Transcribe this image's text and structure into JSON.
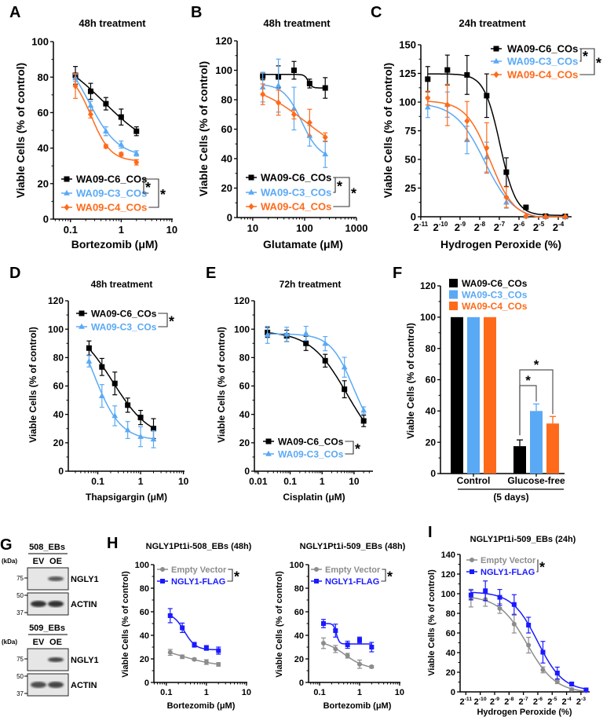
{
  "panel_letters": {
    "A": "A",
    "B": "B",
    "C": "C",
    "D": "D",
    "E": "E",
    "F": "F",
    "G": "G",
    "H": "H",
    "I": "I"
  },
  "colors": {
    "WA09-C6_COs": "#000000",
    "WA09-C3_COs": "#5aa9f5",
    "WA09-C4_COs": "#ff6a1a",
    "Empty Vector": "#8c8c8c",
    "NGLY1-FLAG": "#1a1aff"
  },
  "chart_data": [
    {
      "panel": "A",
      "type": "line",
      "title": "48h treatment",
      "xlabel": "Bortezomib (μM)",
      "ylabel": "Viable Cells (% of control)",
      "xscale": "log10",
      "xlim": [
        0.046,
        10.4
      ],
      "ylim": [
        0,
        100
      ],
      "x_ticks": [
        0.1,
        1,
        10
      ],
      "x_tick_labels": [
        "0.1",
        "1",
        "10"
      ],
      "y_ticks": [
        0,
        20,
        40,
        60,
        80,
        100
      ],
      "series": [
        {
          "name": "WA09-C6_COs",
          "color": "#000000",
          "marker": "square",
          "x": [
            0.125,
            0.25,
            0.5,
            1,
            2
          ],
          "y": [
            81,
            72,
            65,
            57.5,
            49.5
          ],
          "err": [
            5,
            4.5,
            3.5,
            4.5,
            2.5
          ]
        },
        {
          "name": "WA09-C3_COs",
          "color": "#5aa9f5",
          "marker": "triangle",
          "x": [
            0.125,
            0.25,
            0.5,
            1,
            2
          ],
          "y": [
            79.5,
            64,
            49.5,
            42,
            37
          ],
          "err": [
            2,
            2.5,
            2.5,
            2,
            1.5
          ]
        },
        {
          "name": "WA09-C4_COs",
          "color": "#ff6a1a",
          "marker": "diamond",
          "x": [
            0.125,
            0.25,
            0.5,
            1,
            2
          ],
          "y": [
            75,
            59,
            41,
            36.5,
            32
          ],
          "err": [
            7,
            2,
            1,
            1,
            1.5
          ]
        }
      ],
      "significance": [
        {
          "pair": [
            0,
            1
          ],
          "label": "*"
        },
        {
          "pair": [
            0,
            2
          ],
          "label": "*"
        }
      ]
    },
    {
      "panel": "B",
      "type": "line",
      "title": "48h treatment",
      "xlabel": "Glutamate (μM)",
      "ylabel": "Viable Cells (% of control)",
      "xscale": "log10",
      "xlim": [
        5,
        1000
      ],
      "ylim": [
        0,
        120
      ],
      "x_ticks": [
        10,
        100,
        1000
      ],
      "x_tick_labels": [
        "10",
        "100",
        "1000"
      ],
      "y_ticks": [
        0,
        20,
        40,
        60,
        80,
        100,
        120
      ],
      "series": [
        {
          "name": "WA09-C6_COs",
          "color": "#000000",
          "marker": "square",
          "x": [
            15.6,
            31.25,
            62.5,
            125,
            250
          ],
          "y": [
            96,
            95.5,
            100,
            91,
            88
          ],
          "err": [
            2.5,
            7.5,
            6,
            3,
            7
          ]
        },
        {
          "name": "WA09-C3_COs",
          "color": "#5aa9f5",
          "marker": "triangle",
          "x": [
            15.6,
            31.25,
            62.5,
            125,
            250
          ],
          "y": [
            88.5,
            89.6,
            74,
            55.5,
            43
          ],
          "err": [
            10,
            18,
            14.5,
            7,
            9
          ]
        },
        {
          "name": "WA09-C4_COs",
          "color": "#ff6a1a",
          "marker": "diamond",
          "x": [
            15.6,
            31.25,
            62.5,
            125,
            250
          ],
          "y": [
            83.7,
            78,
            70,
            64.5,
            54.5
          ],
          "err": [
            7,
            8.5,
            3,
            9,
            3
          ]
        }
      ],
      "significance": [
        {
          "pair": [
            0,
            1
          ],
          "label": "*"
        },
        {
          "pair": [
            0,
            2
          ],
          "label": "*"
        }
      ]
    },
    {
      "panel": "C",
      "type": "line",
      "title": "24h treatment",
      "xlabel": "Hydrogen Peroxide (%)",
      "ylabel": "Viable Cells (% of control)",
      "xscale": "log2",
      "xlim": [
        0.00049,
        0.1
      ],
      "ylim": [
        0,
        150
      ],
      "x_ticks": [
        -11,
        -10,
        -9,
        -8,
        -7,
        -6,
        -5,
        -4
      ],
      "x_tick_labels": [
        "2^-11",
        "2^-10",
        "2^-9",
        "2^-8",
        "2^-7",
        "2^-6",
        "2^-5",
        "2^-4"
      ],
      "y_ticks": [
        0,
        25,
        50,
        75,
        100,
        125,
        150
      ],
      "series": [
        {
          "name": "WA09-C6_COs",
          "color": "#000000",
          "marker": "square",
          "x": [
            0.000625,
            0.00125,
            0.0025,
            0.005,
            0.01,
            0.02,
            0.04,
            0.08
          ],
          "y": [
            120,
            128,
            123.7,
            105.6,
            38.9,
            8.2,
            0.5,
            0.3
          ],
          "err": [
            11,
            13,
            17,
            19,
            12.5,
            1,
            0.5,
            0.5
          ]
        },
        {
          "name": "WA09-C3_COs",
          "color": "#5aa9f5",
          "marker": "triangle",
          "x": [
            0.000625,
            0.00125,
            0.0025,
            0.005,
            0.01,
            0.02,
            0.04,
            0.08
          ],
          "y": [
            95.5,
            97.8,
            67,
            52,
            12.5,
            0.5,
            0,
            0
          ],
          "err": [
            9,
            11,
            12,
            13,
            5,
            0.5,
            0.3,
            0.3
          ]
        },
        {
          "name": "WA09-C4_COs",
          "color": "#ff6a1a",
          "marker": "diamond",
          "x": [
            0.000625,
            0.00125,
            0.0025,
            0.005,
            0.01,
            0.02,
            0.04,
            0.08
          ],
          "y": [
            103.5,
            97.5,
            83.5,
            60,
            17,
            0.5,
            0,
            0
          ],
          "err": [
            6,
            18,
            17,
            22,
            9,
            0.5,
            0.3,
            0.3
          ]
        }
      ],
      "significance": [
        {
          "pair": [
            0,
            1
          ],
          "label": "*"
        },
        {
          "pair": [
            0,
            2
          ],
          "label": "*"
        }
      ]
    },
    {
      "panel": "D",
      "type": "line",
      "title": "48h treatment",
      "xlabel": "Thapsigargin (μM)",
      "ylabel": "Viable Cells (% of control)",
      "xscale": "log10",
      "xlim": [
        0.0205,
        10.6
      ],
      "ylim": [
        0,
        120
      ],
      "x_ticks": [
        0.1,
        1,
        10
      ],
      "x_tick_labels": [
        "0.1",
        "1",
        "10"
      ],
      "y_ticks": [
        0,
        20,
        40,
        60,
        80,
        100,
        120
      ],
      "series": [
        {
          "name": "WA09-C6_COs",
          "color": "#000000",
          "marker": "square",
          "x": [
            0.0625,
            0.125,
            0.25,
            0.5,
            1,
            2
          ],
          "y": [
            86.7,
            73.4,
            61.8,
            46.5,
            37.8,
            30
          ],
          "err": [
            5,
            6,
            8,
            5,
            5,
            7
          ]
        },
        {
          "name": "WA09-C3_COs",
          "color": "#5aa9f5",
          "marker": "triangle",
          "x": [
            0.0625,
            0.125,
            0.25,
            0.5,
            1,
            2
          ],
          "y": [
            77.4,
            53,
            39,
            29,
            24.3,
            22.5
          ],
          "err": [
            4,
            8,
            7,
            6,
            7,
            6
          ]
        }
      ],
      "significance": [
        {
          "pair": [
            0,
            1
          ],
          "label": "*"
        }
      ]
    },
    {
      "panel": "E",
      "type": "line",
      "title": "72h treatment",
      "xlabel": "Cisplatin (μM)",
      "ylabel": "Viable Cells (% of control)",
      "xscale": "log10",
      "xlim": [
        0.0076,
        39
      ],
      "ylim": [
        0,
        120
      ],
      "x_ticks": [
        0.01,
        0.1,
        1,
        10
      ],
      "x_tick_labels": [
        "0.01",
        "0.1",
        "1",
        "10"
      ],
      "y_ticks": [
        0,
        20,
        40,
        60,
        80,
        100,
        120
      ],
      "series": [
        {
          "name": "WA09-C6_COs",
          "color": "#000000",
          "marker": "square",
          "x": [
            0.0195,
            0.078,
            0.3125,
            1.25,
            5,
            20
          ],
          "y": [
            97.7,
            95.3,
            90,
            77.8,
            57.7,
            35.4
          ],
          "err": [
            3.5,
            4,
            5,
            4.5,
            6,
            4
          ]
        },
        {
          "name": "WA09-C3_COs",
          "color": "#5aa9f5",
          "marker": "triangle",
          "x": [
            0.0195,
            0.078,
            0.3125,
            1.25,
            5,
            20
          ],
          "y": [
            96,
            96.4,
            97,
            89.8,
            73.2,
            42.8
          ],
          "err": [
            6,
            5,
            5,
            5,
            7,
            2.5
          ]
        }
      ],
      "significance": [
        {
          "pair": [
            0,
            1
          ],
          "label": "*"
        }
      ]
    },
    {
      "panel": "F",
      "type": "bar",
      "title": "",
      "xlabel": "(5 days)",
      "ylabel": "Viable Cells (% of control)",
      "ylim": [
        0,
        120
      ],
      "y_ticks": [
        0,
        20,
        40,
        60,
        80,
        100,
        120
      ],
      "categories": [
        "Control",
        "Glucose-free"
      ],
      "series": [
        {
          "name": "WA09-C6_COs",
          "color": "#000000",
          "values": [
            100,
            17.5
          ],
          "err": [
            0,
            4
          ]
        },
        {
          "name": "WA09-C3_COs",
          "color": "#5aa9f5",
          "values": [
            100,
            40
          ],
          "err": [
            0,
            4.5
          ]
        },
        {
          "name": "WA09-C4_COs",
          "color": "#ff6a1a",
          "values": [
            100,
            32
          ],
          "err": [
            0,
            4.5
          ]
        }
      ],
      "significance": [
        {
          "category": 1,
          "pair": [
            0,
            1
          ],
          "label": "*"
        },
        {
          "category": 1,
          "pair": [
            0,
            2
          ],
          "label": "*"
        }
      ],
      "legend": "top-left"
    },
    {
      "panel": "H",
      "type": "line",
      "title": "NGLY1Pt1i-508_EBs (48h)",
      "xlabel": "Bortezomib (μM)",
      "ylabel": "Viable Cells (% of control)",
      "xscale": "log10",
      "xlim": [
        0.049,
        10.5
      ],
      "ylim": [
        0,
        100
      ],
      "x_ticks": [
        0.1,
        1,
        10
      ],
      "x_tick_labels": [
        "0.1",
        "1",
        "10"
      ],
      "y_ticks": [
        0,
        20,
        40,
        60,
        80,
        100
      ],
      "series": [
        {
          "name": "Empty Vector",
          "color": "#8c8c8c",
          "marker": "circle",
          "x": [
            0.125,
            0.25,
            0.5,
            1,
            2
          ],
          "y": [
            25.5,
            21.8,
            19.6,
            17.3,
            15.3
          ],
          "err": [
            2.5,
            1.5,
            1,
            2,
            1.5
          ]
        },
        {
          "name": "NGLY1-FLAG",
          "color": "#1a1aff",
          "marker": "square",
          "x": [
            0.125,
            0.25,
            0.5,
            1,
            2
          ],
          "y": [
            56.7,
            46.4,
            32,
            29.3,
            27
          ],
          "err": [
            6,
            4,
            2,
            2,
            3
          ]
        }
      ],
      "significance": [
        {
          "pair": [
            0,
            1
          ],
          "label": "*"
        }
      ]
    },
    {
      "panel": "H",
      "type": "line",
      "title": "NGLY1Pt1i-509_EBs (48h)",
      "xlabel": "Bortezomib (μM)",
      "ylabel": "Viable Cells (% of control)",
      "xscale": "log10",
      "xlim": [
        0.053,
        10.5
      ],
      "ylim": [
        0,
        100
      ],
      "x_ticks": [
        0.1,
        1,
        10
      ],
      "x_tick_labels": [
        "0.1",
        "1",
        "10"
      ],
      "y_ticks": [
        0,
        20,
        40,
        60,
        80,
        100
      ],
      "series": [
        {
          "name": "Empty Vector",
          "color": "#8c8c8c",
          "marker": "circle",
          "x": [
            0.125,
            0.25,
            0.5,
            1,
            2
          ],
          "y": [
            33.3,
            28.4,
            22.7,
            15.5,
            13.3
          ],
          "err": [
            4.5,
            3,
            2,
            3.5,
            1
          ]
        },
        {
          "name": "NGLY1-FLAG",
          "color": "#1a1aff",
          "marker": "square",
          "x": [
            0.125,
            0.25,
            0.5,
            1,
            2
          ],
          "y": [
            50,
            44,
            32,
            36,
            30
          ],
          "err": [
            3.5,
            5.5,
            3,
            2.5,
            4
          ]
        }
      ],
      "significance": [
        {
          "pair": [
            0,
            1
          ],
          "label": "*"
        }
      ]
    },
    {
      "panel": "I",
      "type": "line",
      "title": "NGLY1Pt1i-509_EBs (24h)",
      "xlabel": "Hydrogen Peroxide (%)",
      "ylabel": "Viable Cells (% of control)",
      "xscale": "log2",
      "xlim": [
        0.00037,
        0.19
      ],
      "ylim": [
        0,
        140
      ],
      "x_ticks": [
        -11,
        -10,
        -9,
        -8,
        -7,
        -6,
        -5,
        -4,
        -3
      ],
      "x_tick_labels": [
        "2^-11",
        "2^-10",
        "2^-9",
        "2^-8",
        "2^-7",
        "2^-6",
        "2^-5",
        "2^-4",
        "2^-3"
      ],
      "y_ticks": [
        0,
        20,
        40,
        60,
        80,
        100,
        120,
        140
      ],
      "series": [
        {
          "name": "Empty Vector",
          "color": "#8c8c8c",
          "marker": "circle",
          "x": [
            0.000625,
            0.00125,
            0.0025,
            0.005,
            0.01,
            0.02,
            0.04,
            0.08,
            0.16
          ],
          "y": [
            95.5,
            94.2,
            85,
            69,
            47.6,
            22.4,
            10.4,
            2.4,
            1
          ],
          "err": [
            9,
            7,
            5,
            9,
            8,
            3,
            2,
            1.5,
            1
          ]
        },
        {
          "name": "NGLY1-FLAG",
          "color": "#1a1aff",
          "marker": "square",
          "x": [
            0.000625,
            0.00125,
            0.0025,
            0.005,
            0.01,
            0.02,
            0.04,
            0.08,
            0.16
          ],
          "y": [
            98.7,
            103,
            96.3,
            89,
            68,
            40.4,
            19.2,
            8,
            2
          ],
          "err": [
            5,
            10,
            8,
            10,
            8,
            11,
            6,
            2,
            1
          ]
        }
      ],
      "significance": [
        {
          "pair": [
            0,
            1
          ],
          "label": "*"
        }
      ]
    }
  ],
  "blots": [
    {
      "title": "508_EBs",
      "unit": "(kDa)",
      "lanes": [
        "EV",
        "OE"
      ],
      "rows": [
        {
          "label": "NGLY1",
          "markers": [
            "75"
          ],
          "bands": [
            0,
            0.8
          ]
        },
        {
          "label": "ACTIN",
          "markers": [
            "50",
            "37"
          ],
          "bands": [
            1,
            1
          ]
        }
      ]
    },
    {
      "title": "509_EBs",
      "unit": "(kDa)",
      "lanes": [
        "EV",
        "OE"
      ],
      "rows": [
        {
          "label": "NGLY1",
          "markers": [
            "75"
          ],
          "bands": [
            0,
            0.9
          ]
        },
        {
          "label": "ACTIN",
          "markers": [
            "50",
            "37"
          ],
          "bands": [
            0.85,
            0.9
          ]
        }
      ]
    }
  ]
}
